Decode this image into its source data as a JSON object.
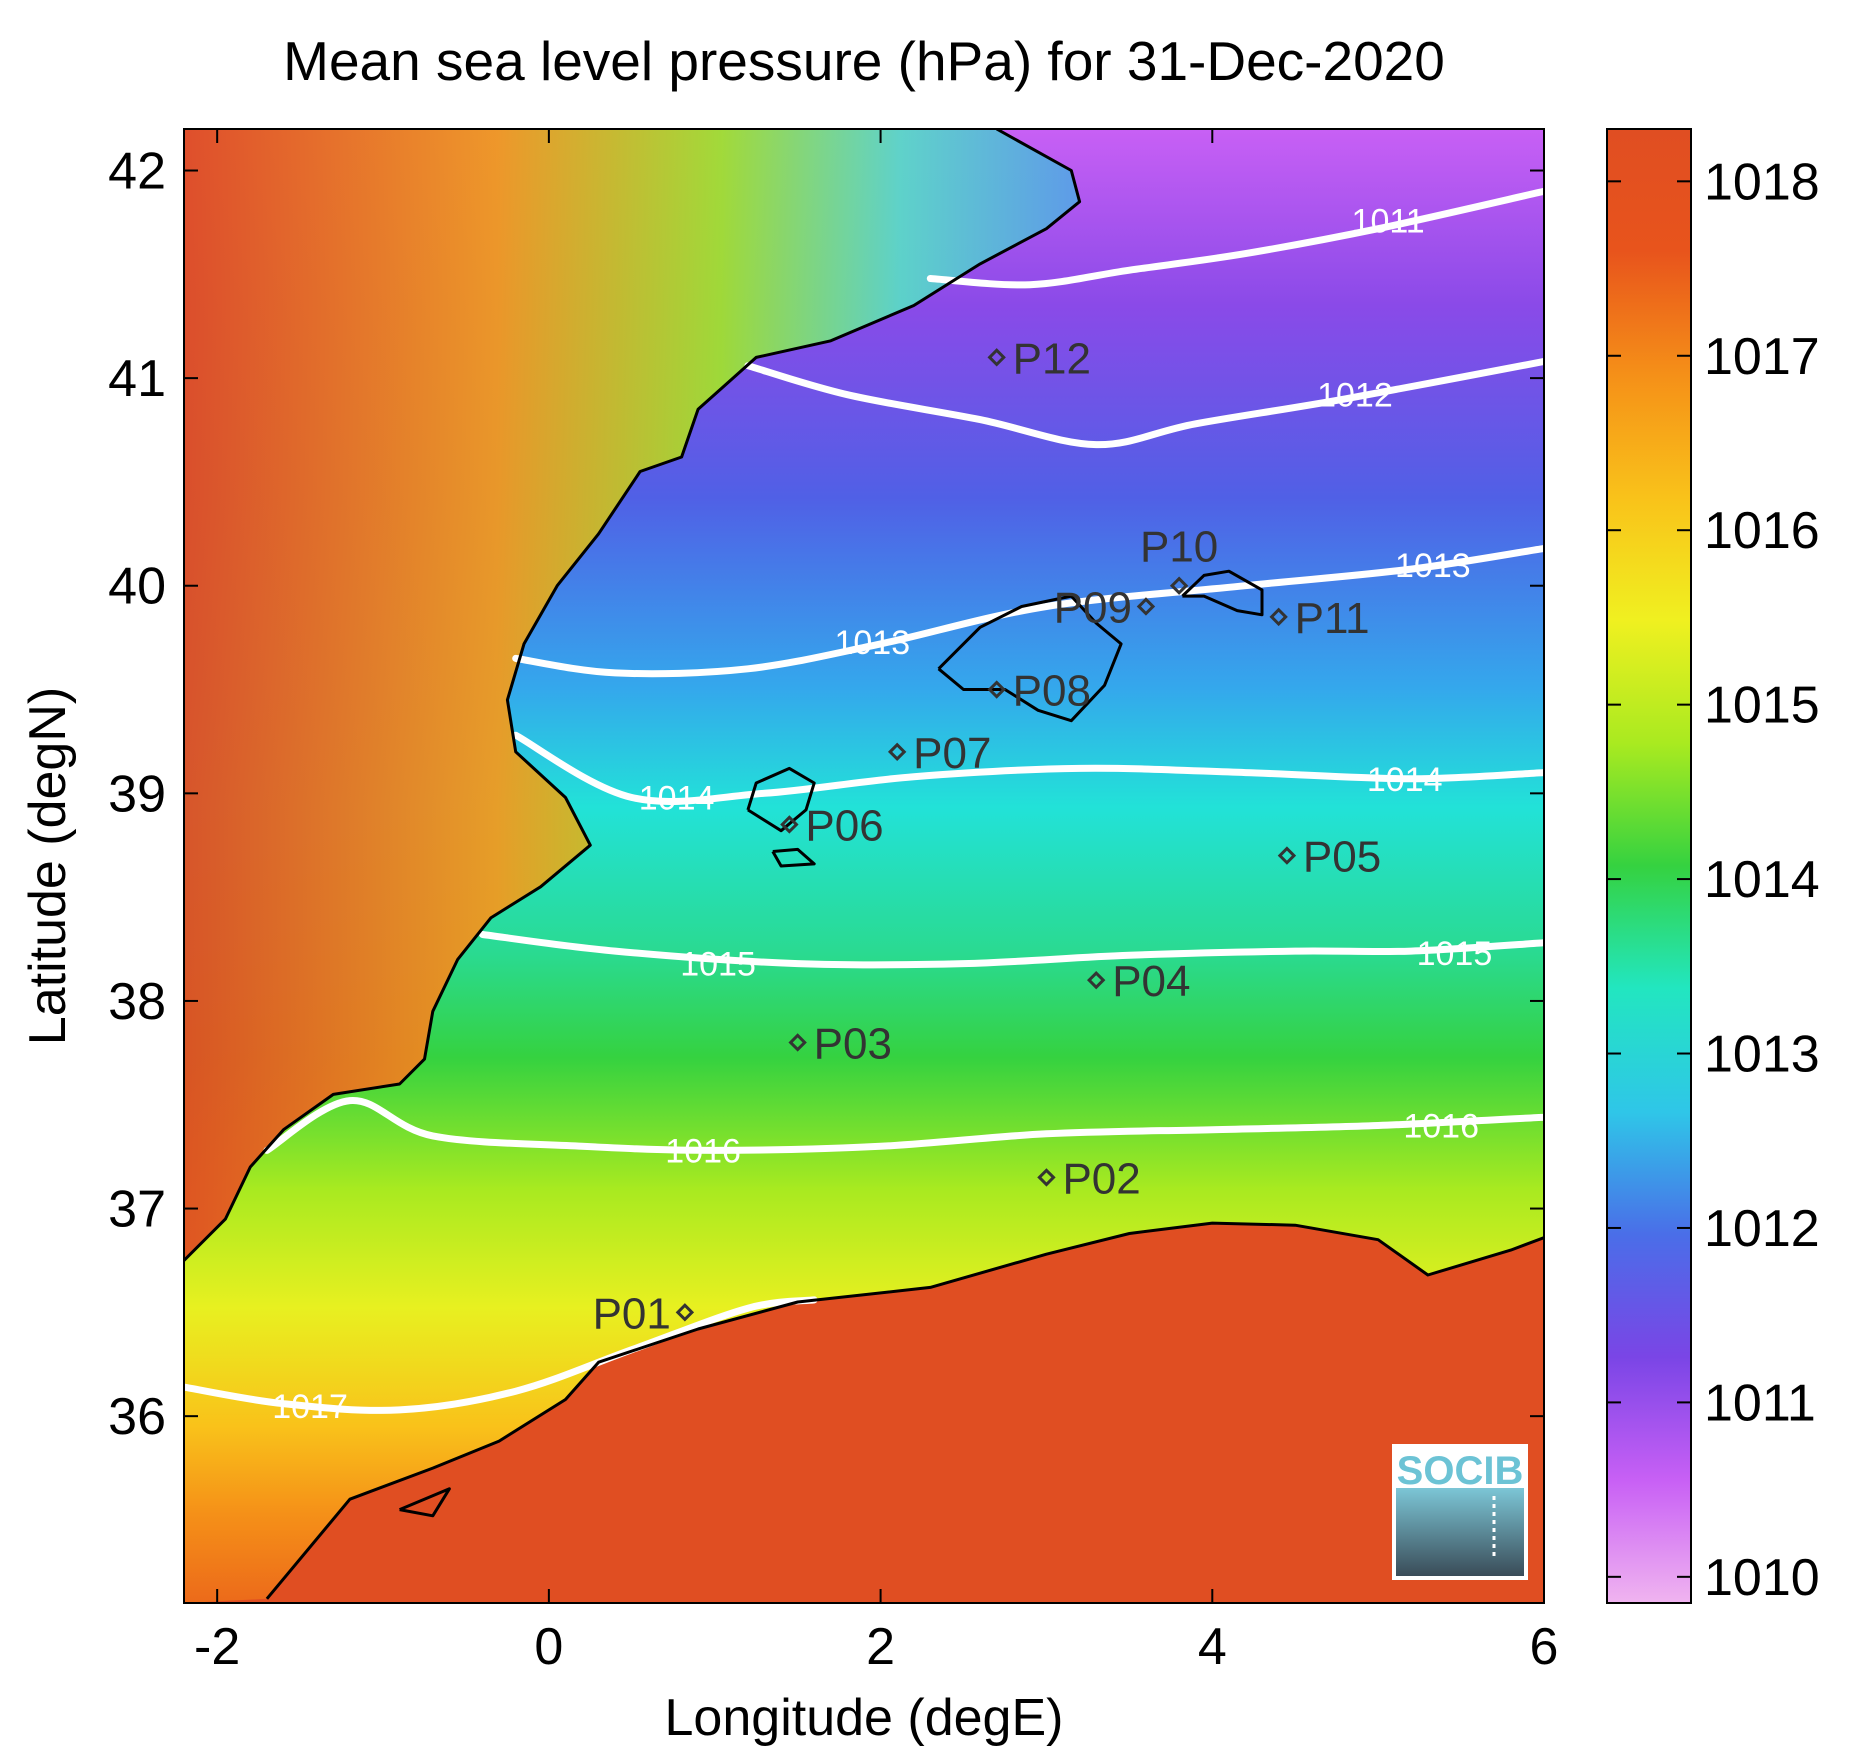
{
  "title": "Mean sea level pressure (hPa) for 31-Dec-2020",
  "axes": {
    "xlabel": "Longitude (degE)",
    "ylabel": "Latitude (degN)",
    "xlim": [
      -2.2,
      6.0
    ],
    "ylim": [
      35.1,
      42.2
    ],
    "x_ticks": [
      -2,
      0,
      2,
      4,
      6
    ],
    "y_ticks": [
      36,
      37,
      38,
      39,
      40,
      41,
      42
    ]
  },
  "colorbar": {
    "range": [
      1009.85,
      1018.3
    ],
    "ticks": [
      1010,
      1011,
      1012,
      1013,
      1014,
      1015,
      1016,
      1017,
      1018
    ],
    "colors": [
      "#f0b4f0",
      "#c860f5",
      "#7a45e6",
      "#4a6ee8",
      "#2fc6e8",
      "#22e6c0",
      "#35d240",
      "#a9ea20",
      "#f0f020",
      "#f9c21a",
      "#f59018",
      "#e8541c",
      "#e04e22"
    ]
  },
  "contours": [
    {
      "label": "1011",
      "points": [
        [
          2.3,
          41.48
        ],
        [
          2.9,
          41.45
        ],
        [
          3.5,
          41.52
        ],
        [
          4.2,
          41.6
        ],
        [
          5.0,
          41.72
        ],
        [
          6.0,
          41.9
        ]
      ]
    },
    {
      "label": "1012",
      "points": [
        [
          1.2,
          41.06
        ],
        [
          1.8,
          40.92
        ],
        [
          2.6,
          40.8
        ],
        [
          3.3,
          40.68
        ],
        [
          3.9,
          40.78
        ],
        [
          4.8,
          40.9
        ],
        [
          6.0,
          41.08
        ]
      ]
    },
    {
      "label": "1013",
      "points": [
        [
          -0.2,
          39.65
        ],
        [
          0.4,
          39.58
        ],
        [
          1.2,
          39.6
        ],
        [
          2.0,
          39.72
        ],
        [
          3.0,
          39.9
        ],
        [
          4.2,
          40.0
        ],
        [
          5.2,
          40.08
        ],
        [
          6.0,
          40.18
        ]
      ]
    },
    {
      "label": "1014",
      "points": [
        [
          -0.2,
          39.28
        ],
        [
          0.5,
          38.98
        ],
        [
          1.3,
          39.0
        ],
        [
          2.2,
          39.08
        ],
        [
          3.2,
          39.12
        ],
        [
          4.2,
          39.1
        ],
        [
          5.2,
          39.07
        ],
        [
          6.0,
          39.1
        ]
      ]
    },
    {
      "label": "1015",
      "points": [
        [
          -0.4,
          38.32
        ],
        [
          0.4,
          38.24
        ],
        [
          1.5,
          38.18
        ],
        [
          2.5,
          38.18
        ],
        [
          3.5,
          38.22
        ],
        [
          4.5,
          38.24
        ],
        [
          5.2,
          38.24
        ],
        [
          6.0,
          38.28
        ]
      ]
    },
    {
      "label": "1016",
      "points": [
        [
          -1.7,
          37.28
        ],
        [
          -1.2,
          37.52
        ],
        [
          -0.7,
          37.35
        ],
        [
          0.2,
          37.3
        ],
        [
          1.0,
          37.28
        ],
        [
          2.0,
          37.3
        ],
        [
          3.0,
          37.36
        ],
        [
          4.0,
          37.38
        ],
        [
          5.0,
          37.4
        ],
        [
          6.0,
          37.44
        ]
      ]
    },
    {
      "label": "1017",
      "points": [
        [
          -2.2,
          36.14
        ],
        [
          -1.6,
          36.06
        ],
        [
          -0.9,
          36.03
        ],
        [
          -0.2,
          36.12
        ],
        [
          0.5,
          36.32
        ],
        [
          1.2,
          36.52
        ],
        [
          1.6,
          36.56
        ]
      ]
    }
  ],
  "contour_labels": [
    {
      "text": "1011",
      "lon": 5.06,
      "lat": 41.76
    },
    {
      "text": "1012",
      "lon": 4.86,
      "lat": 40.92
    },
    {
      "text": "1013",
      "lon": 5.33,
      "lat": 40.1
    },
    {
      "text": "1013",
      "lon": 1.95,
      "lat": 39.73
    },
    {
      "text": "1014",
      "lon": 0.77,
      "lat": 38.98
    },
    {
      "text": "1014",
      "lon": 5.16,
      "lat": 39.07
    },
    {
      "text": "1015",
      "lon": 1.02,
      "lat": 38.18
    },
    {
      "text": "1015",
      "lon": 5.46,
      "lat": 38.23
    },
    {
      "text": "1016",
      "lon": 0.93,
      "lat": 37.28
    },
    {
      "text": "1016",
      "lon": 5.38,
      "lat": 37.4
    },
    {
      "text": "1017",
      "lon": -1.44,
      "lat": 36.05
    }
  ],
  "stations": [
    {
      "id": "P01",
      "lon": 0.82,
      "lat": 36.5,
      "label_side": "left"
    },
    {
      "id": "P02",
      "lon": 3.0,
      "lat": 37.15,
      "label_side": "right"
    },
    {
      "id": "P03",
      "lon": 1.5,
      "lat": 37.8,
      "label_side": "right"
    },
    {
      "id": "P04",
      "lon": 3.3,
      "lat": 38.1,
      "label_side": "right"
    },
    {
      "id": "P05",
      "lon": 4.45,
      "lat": 38.7,
      "label_side": "right"
    },
    {
      "id": "P06",
      "lon": 1.45,
      "lat": 38.85,
      "label_side": "right"
    },
    {
      "id": "P07",
      "lon": 2.1,
      "lat": 39.2,
      "label_side": "right"
    },
    {
      "id": "P08",
      "lon": 2.7,
      "lat": 39.5,
      "label_side": "right"
    },
    {
      "id": "P09",
      "lon": 3.6,
      "lat": 39.9,
      "label_side": "left"
    },
    {
      "id": "P10",
      "lon": 3.8,
      "lat": 40.0,
      "label_side": "above"
    },
    {
      "id": "P11",
      "lon": 4.4,
      "lat": 39.85,
      "label_side": "right"
    },
    {
      "id": "P12",
      "lon": 2.7,
      "lat": 41.1,
      "label_side": "right"
    }
  ],
  "coastlines": {
    "iberia_north": [
      [
        2.7,
        42.2
      ],
      [
        3.15,
        42.0
      ],
      [
        3.2,
        41.85
      ],
      [
        3.0,
        41.72
      ],
      [
        2.6,
        41.55
      ],
      [
        2.2,
        41.35
      ],
      [
        1.7,
        41.18
      ],
      [
        1.25,
        41.1
      ],
      [
        0.9,
        40.85
      ],
      [
        0.8,
        40.62
      ],
      [
        0.55,
        40.55
      ],
      [
        0.3,
        40.25
      ],
      [
        0.05,
        40.0
      ],
      [
        -0.15,
        39.72
      ],
      [
        -0.25,
        39.45
      ],
      [
        -0.2,
        39.2
      ],
      [
        0.1,
        38.98
      ],
      [
        0.25,
        38.75
      ],
      [
        -0.05,
        38.55
      ],
      [
        -0.35,
        38.4
      ],
      [
        -0.55,
        38.2
      ],
      [
        -0.7,
        37.95
      ],
      [
        -0.75,
        37.72
      ],
      [
        -0.9,
        37.6
      ],
      [
        -1.3,
        37.55
      ],
      [
        -1.6,
        37.38
      ],
      [
        -1.8,
        37.2
      ],
      [
        -1.95,
        36.95
      ],
      [
        -2.2,
        36.75
      ]
    ],
    "africa": [
      [
        -1.7,
        35.12
      ],
      [
        -1.2,
        35.6
      ],
      [
        -0.7,
        35.75
      ],
      [
        -0.3,
        35.88
      ],
      [
        0.1,
        36.08
      ],
      [
        0.3,
        36.26
      ],
      [
        0.9,
        36.42
      ],
      [
        1.5,
        36.55
      ],
      [
        2.3,
        36.62
      ],
      [
        3.0,
        36.78
      ],
      [
        3.5,
        36.88
      ],
      [
        4.0,
        36.93
      ],
      [
        4.5,
        36.92
      ],
      [
        5.0,
        36.85
      ],
      [
        5.3,
        36.68
      ],
      [
        5.8,
        36.8
      ],
      [
        6.0,
        36.86
      ]
    ],
    "mallorca": [
      [
        2.35,
        39.6
      ],
      [
        2.6,
        39.8
      ],
      [
        2.85,
        39.9
      ],
      [
        3.15,
        39.95
      ],
      [
        3.3,
        39.82
      ],
      [
        3.45,
        39.72
      ],
      [
        3.35,
        39.52
      ],
      [
        3.15,
        39.35
      ],
      [
        2.95,
        39.4
      ],
      [
        2.75,
        39.5
      ],
      [
        2.5,
        39.5
      ],
      [
        2.35,
        39.6
      ]
    ],
    "menorca": [
      [
        3.82,
        39.95
      ],
      [
        3.95,
        40.05
      ],
      [
        4.1,
        40.07
      ],
      [
        4.3,
        39.98
      ],
      [
        4.3,
        39.86
      ],
      [
        4.15,
        39.88
      ],
      [
        3.95,
        39.95
      ],
      [
        3.82,
        39.95
      ]
    ],
    "ibiza": [
      [
        1.2,
        38.92
      ],
      [
        1.25,
        39.05
      ],
      [
        1.45,
        39.12
      ],
      [
        1.6,
        39.05
      ],
      [
        1.55,
        38.92
      ],
      [
        1.4,
        38.82
      ],
      [
        1.2,
        38.92
      ]
    ],
    "formentera": [
      [
        1.35,
        38.72
      ],
      [
        1.5,
        38.73
      ],
      [
        1.6,
        38.66
      ],
      [
        1.4,
        38.65
      ],
      [
        1.35,
        38.72
      ]
    ],
    "alboran": [
      [
        -0.9,
        35.55
      ],
      [
        -0.6,
        35.65
      ],
      [
        -0.7,
        35.52
      ],
      [
        -0.9,
        35.55
      ]
    ]
  },
  "logo": {
    "text": "SOCIB"
  }
}
